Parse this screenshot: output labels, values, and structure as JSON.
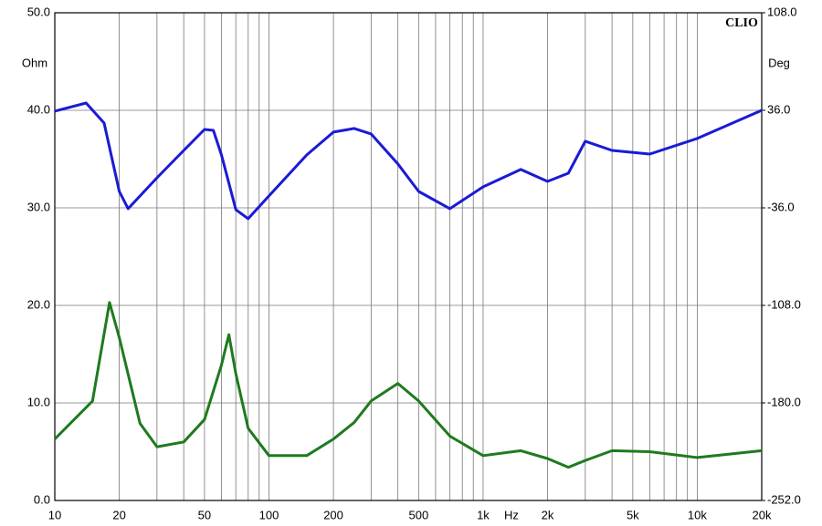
{
  "chart_data": {
    "type": "line",
    "annotation": "CLIO",
    "x_label": "Hz",
    "y_label": "Ohm",
    "y2_label": "Deg",
    "log_x": true,
    "grid": true,
    "x": [
      10,
      14,
      15,
      17,
      18,
      20,
      22,
      25,
      30,
      40,
      50,
      55,
      60,
      65,
      70,
      80,
      100,
      150,
      200,
      250,
      300,
      400,
      500,
      700,
      1000,
      1500,
      2000,
      2500,
      3000,
      4000,
      6000,
      10000,
      20000
    ],
    "series": [
      {
        "color": "#1f7a1f",
        "values": [
          6.3,
          null,
          10.2,
          null,
          20.3,
          16.7,
          null,
          7.9,
          5.5,
          6.0,
          8.3,
          null,
          13.9,
          17.0,
          13.0,
          7.4,
          4.6,
          4.6,
          6.3,
          8.0,
          10.2,
          12.0,
          10.2,
          6.6,
          4.6,
          5.1,
          4.3,
          3.4,
          4.1,
          5.1,
          5.0,
          4.4,
          5.1
        ]
      },
      {
        "color": "#1a1ad6",
        "axis": "y2",
        "values": [
          35.4,
          41.4,
          null,
          26.6,
          null,
          -23.9,
          -36.6,
          null,
          -13.8,
          6.4,
          21.9,
          21.2,
          3.0,
          null,
          -37.3,
          -44.0,
          -27.2,
          3.0,
          19.9,
          22.6,
          18.6,
          -3.6,
          -23.9,
          -36.6,
          -20.5,
          -7.7,
          -16.5,
          -10.4,
          13.2,
          6.4,
          3.7,
          15.2,
          36.0
        ]
      }
    ],
    "xlim": [
      10,
      20000
    ],
    "xticks": [
      10,
      20,
      50,
      100,
      200,
      500,
      {
        "value": 1000,
        "label": "1k"
      },
      {
        "value": 2000,
        "label": "2k"
      },
      {
        "value": 5000,
        "label": "5k"
      },
      {
        "value": 10000,
        "label": "10k"
      },
      {
        "value": 20000,
        "label": "20k"
      }
    ],
    "x_minor_ticks": [
      30,
      40,
      60,
      70,
      80,
      90,
      300,
      400,
      600,
      700,
      800,
      900,
      3000,
      4000,
      6000,
      7000,
      8000,
      9000
    ],
    "ylim": [
      0,
      50
    ],
    "yticks": [
      {
        "value": 0,
        "label": "0.0"
      },
      {
        "value": 10,
        "label": "10.0"
      },
      {
        "value": 20,
        "label": "20.0"
      },
      {
        "value": 30,
        "label": "30.0"
      },
      {
        "value": 40,
        "label": "40.0"
      },
      {
        "value": 50,
        "label": "50.0"
      }
    ],
    "y2lim": [
      -252,
      108
    ],
    "y2ticks": [
      {
        "value": -252,
        "label": "-252.0"
      },
      {
        "value": -180,
        "label": "-180.0"
      },
      {
        "value": -108,
        "label": "-108.0"
      },
      {
        "value": -36,
        "label": "-36.0"
      },
      {
        "value": 36,
        "label": "36.0"
      },
      {
        "value": 108,
        "label": "108.0"
      }
    ]
  }
}
